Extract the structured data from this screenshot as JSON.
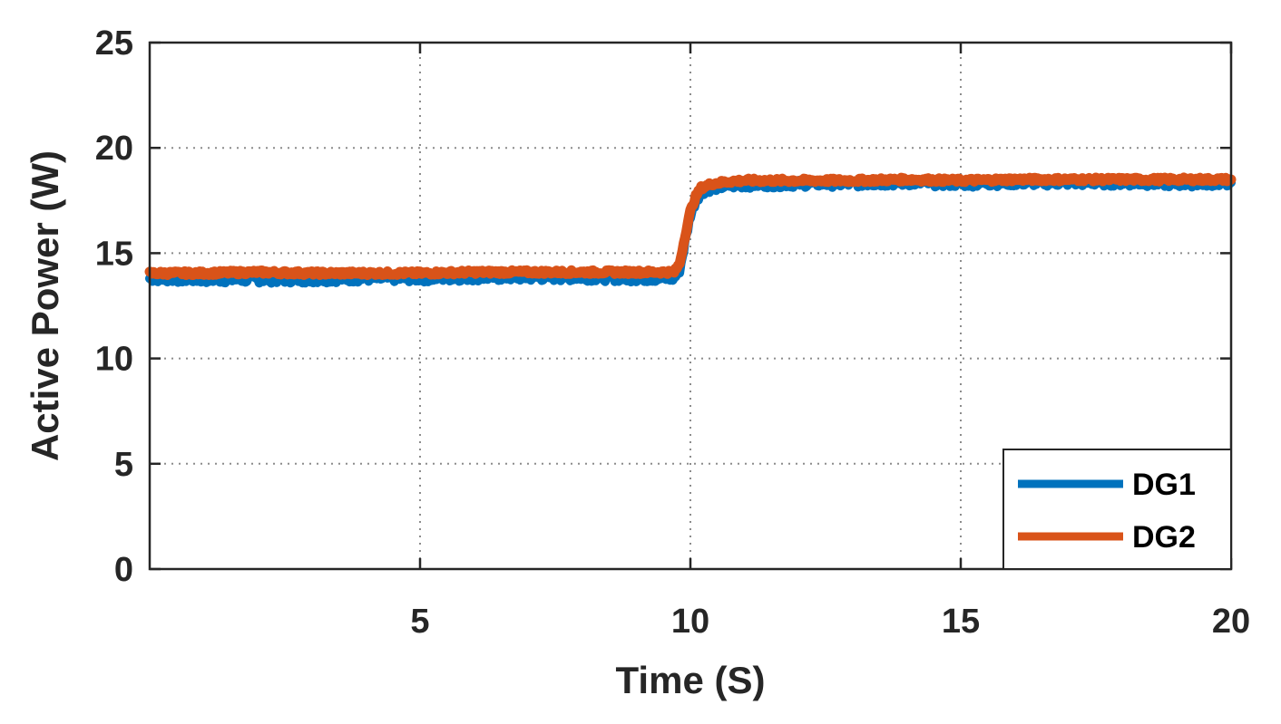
{
  "chart_data": {
    "type": "line",
    "title": "",
    "xlabel": "Time (S)",
    "ylabel": "Active Power (W)",
    "xlim": [
      0,
      20
    ],
    "ylim": [
      0,
      25
    ],
    "x_ticks": [
      5,
      10,
      15,
      20
    ],
    "y_ticks": [
      0,
      5,
      10,
      15,
      20,
      25
    ],
    "x_tick_labels": [
      "5",
      "10",
      "15",
      "20"
    ],
    "y_tick_labels": [
      "0",
      "5",
      "10",
      "15",
      "20",
      "25"
    ],
    "grid": true,
    "grid_style": "dotted",
    "legend_position": "bottom-right",
    "series": [
      {
        "name": "DG1",
        "color": "#0072BD",
        "x": [
          0,
          1,
          2,
          3,
          4,
          5,
          6,
          7,
          8,
          9,
          9.7,
          9.8,
          9.9,
          10.0,
          10.1,
          10.2,
          10.4,
          10.7,
          11,
          12,
          13,
          14,
          15,
          16,
          17,
          18,
          19,
          20
        ],
        "y": [
          13.8,
          13.75,
          13.75,
          13.75,
          13.8,
          13.8,
          13.85,
          13.85,
          13.85,
          13.8,
          13.8,
          14.2,
          15.5,
          16.8,
          17.5,
          17.9,
          18.1,
          18.2,
          18.25,
          18.3,
          18.3,
          18.35,
          18.3,
          18.35,
          18.35,
          18.35,
          18.3,
          18.35
        ]
      },
      {
        "name": "DG2",
        "color": "#D95319",
        "x": [
          0,
          1,
          2,
          3,
          4,
          5,
          6,
          7,
          8,
          9,
          9.7,
          9.8,
          9.9,
          10.0,
          10.1,
          10.2,
          10.4,
          10.7,
          11,
          12,
          13,
          14,
          15,
          16,
          17,
          18,
          19,
          20
        ],
        "y": [
          14.05,
          14.05,
          14.1,
          14.05,
          14.05,
          14.05,
          14.1,
          14.1,
          14.1,
          14.1,
          14.1,
          14.5,
          15.8,
          17.0,
          17.7,
          18.1,
          18.3,
          18.4,
          18.45,
          18.45,
          18.45,
          18.5,
          18.45,
          18.5,
          18.5,
          18.5,
          18.5,
          18.5
        ]
      }
    ]
  }
}
